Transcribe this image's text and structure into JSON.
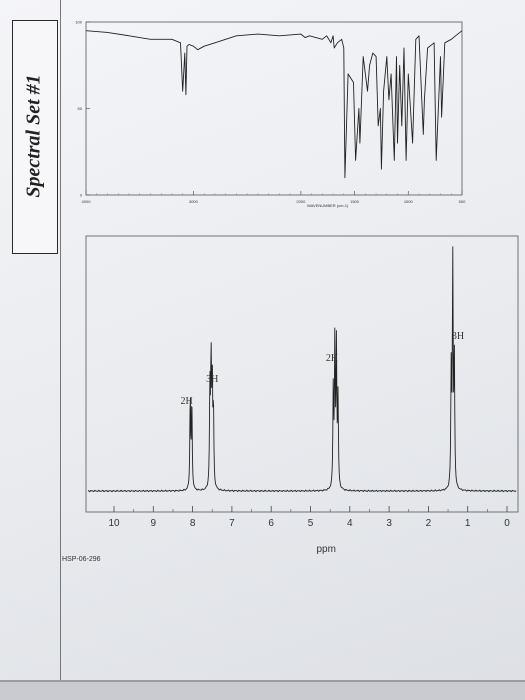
{
  "set_title": "Spectral Set #1",
  "footer_id": "HSP-06-296",
  "chart_data": [
    {
      "type": "line",
      "xlabel": "WAVENUMBER (cm-1)",
      "x_ticks": [
        "4000",
        "3000",
        "2000",
        "1500",
        "1000",
        "500"
      ],
      "y_ticks": [
        "0",
        "50",
        "100"
      ],
      "xlim": [
        4000,
        500
      ],
      "ylim": [
        0,
        100
      ],
      "grid": false,
      "series": [
        {
          "x": [
            4000,
            3800,
            3600,
            3400,
            3200,
            3120,
            3100,
            3080,
            3070,
            3060,
            3040,
            3000,
            2960,
            2900,
            2800,
            2600,
            2400,
            2200,
            2000,
            1960,
            1920,
            1800,
            1760,
            1740,
            1720,
            1700,
            1690,
            1660,
            1620,
            1600,
            1590,
            1560,
            1510,
            1490,
            1460,
            1450,
            1420,
            1380,
            1360,
            1330,
            1300,
            1280,
            1260,
            1250,
            1230,
            1200,
            1180,
            1160,
            1130,
            1110,
            1100,
            1080,
            1060,
            1040,
            1020,
            1000,
            960,
            930,
            900,
            860,
            850,
            820,
            760,
            740,
            700,
            690,
            660,
            600,
            560,
            500
          ],
          "y": [
            95,
            94,
            92,
            90,
            90,
            88,
            60,
            82,
            58,
            86,
            87,
            86,
            84,
            86,
            88,
            92,
            93,
            92,
            93,
            91,
            92,
            90,
            92,
            90,
            88,
            92,
            85,
            88,
            90,
            85,
            10,
            70,
            65,
            20,
            50,
            30,
            80,
            60,
            75,
            82,
            80,
            40,
            50,
            15,
            60,
            80,
            55,
            70,
            20,
            80,
            30,
            75,
            40,
            85,
            20,
            70,
            30,
            90,
            92,
            35,
            55,
            85,
            88,
            20,
            80,
            45,
            88,
            90,
            92,
            95
          ]
        }
      ]
    },
    {
      "type": "line",
      "xlabel": "ppm",
      "x_ticks": [
        "10",
        "9",
        "8",
        "7",
        "6",
        "5",
        "4",
        "3",
        "2",
        "1",
        "0"
      ],
      "xlim": [
        10,
        0
      ],
      "grid": false,
      "integrations": [
        {
          "label": "2H",
          "ppm": 8.0
        },
        {
          "label": "3H",
          "ppm": 7.5
        },
        {
          "label": "2H",
          "ppm": 4.35
        },
        {
          "label": "3H",
          "ppm": 1.35
        }
      ],
      "series": [
        {
          "name": "",
          "peaks": [
            {
              "ppm": 8.06,
              "height": 0.4
            },
            {
              "ppm": 8.02,
              "height": 0.38
            },
            {
              "ppm": 7.56,
              "height": 0.42
            },
            {
              "ppm": 7.53,
              "height": 0.54
            },
            {
              "ppm": 7.5,
              "height": 0.45
            },
            {
              "ppm": 7.47,
              "height": 0.33
            },
            {
              "ppm": 4.42,
              "height": 0.44
            },
            {
              "ppm": 4.38,
              "height": 0.62
            },
            {
              "ppm": 4.34,
              "height": 0.6
            },
            {
              "ppm": 4.3,
              "height": 0.38
            },
            {
              "ppm": 1.42,
              "height": 0.5
            },
            {
              "ppm": 1.38,
              "height": 1.0
            },
            {
              "ppm": 1.34,
              "height": 0.55
            }
          ]
        }
      ]
    }
  ]
}
